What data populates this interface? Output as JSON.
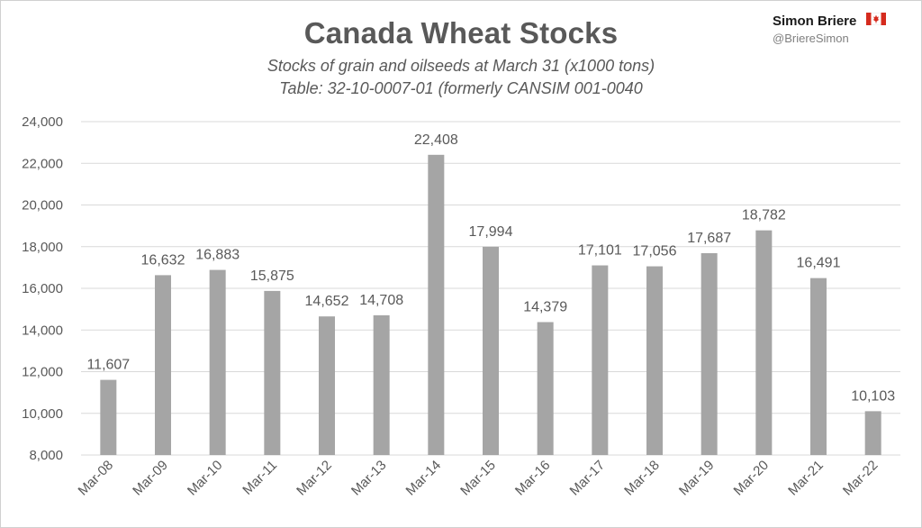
{
  "header": {
    "title": "Canada Wheat Stocks",
    "subtitle_line1": "Stocks of grain and oilseeds at March 31 (x1000 tons)",
    "subtitle_line2": "Table: 32-10-0007-01 (formerly CANSIM 001-0040"
  },
  "brand": {
    "name": "Simon Briere",
    "handle": "@BriereSimon",
    "flag_icon": "canada-flag-icon",
    "flag_color": "#d52b1e"
  },
  "chart_data": {
    "type": "bar",
    "title": "Canada Wheat Stocks",
    "subtitle": "Stocks of grain and oilseeds at March 31 (x1000 tons)",
    "xlabel": "",
    "ylabel": "",
    "categories": [
      "Mar-08",
      "Mar-09",
      "Mar-10",
      "Mar-11",
      "Mar-12",
      "Mar-13",
      "Mar-14",
      "Mar-15",
      "Mar-16",
      "Mar-17",
      "Mar-18",
      "Mar-19",
      "Mar-20",
      "Mar-21",
      "Mar-22"
    ],
    "values": [
      11607,
      16632,
      16883,
      15875,
      14652,
      14708,
      22408,
      17994,
      14379,
      17101,
      17056,
      17687,
      18782,
      16491,
      10103
    ],
    "value_labels": [
      "11,607",
      "16,632",
      "16,883",
      "15,875",
      "14,652",
      "14,708",
      "22,408",
      "17,994",
      "14,379",
      "17,101",
      "17,056",
      "17,687",
      "18,782",
      "16,491",
      "10,103"
    ],
    "ylim": [
      8000,
      24000
    ],
    "y_ticks": [
      8000,
      10000,
      12000,
      14000,
      16000,
      18000,
      20000,
      22000,
      24000
    ],
    "y_tick_labels": [
      "8,000",
      "10,000",
      "12,000",
      "14,000",
      "16,000",
      "18,000",
      "20,000",
      "22,000",
      "24,000"
    ],
    "grid": true,
    "bar_color": "#a5a5a5",
    "grid_color": "#d9d9d9",
    "text_color": "#595959"
  }
}
